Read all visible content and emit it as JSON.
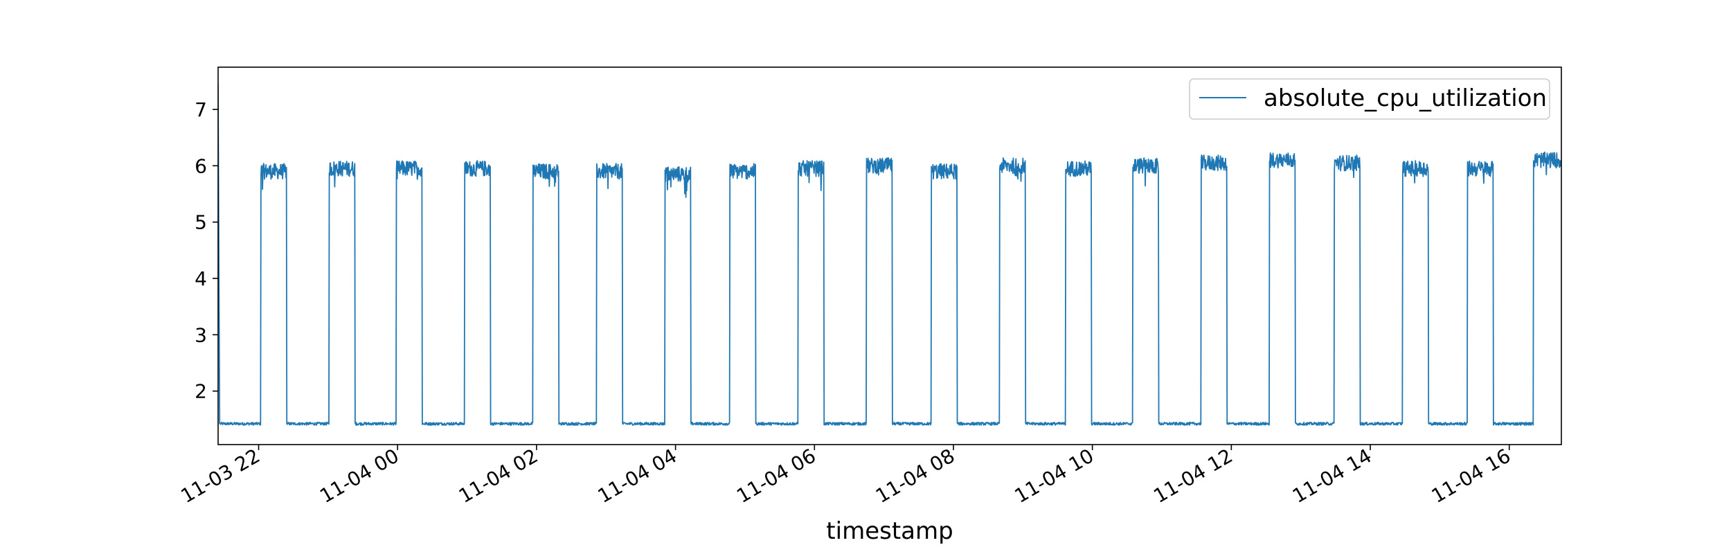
{
  "chart_data": {
    "type": "line",
    "title": "",
    "xlabel": "timestamp",
    "ylabel": "",
    "x_range": [
      "2023-11-03 21:25",
      "2023-11-04 16:45"
    ],
    "ylim": [
      1.05,
      7.75
    ],
    "y_ticks": [
      2,
      3,
      4,
      5,
      6,
      7
    ],
    "x_ticks": [
      {
        "time": "2023-11-03 22:00",
        "label": "11-03 22"
      },
      {
        "time": "2023-11-04 00:00",
        "label": "11-04 00"
      },
      {
        "time": "2023-11-04 02:00",
        "label": "11-04 02"
      },
      {
        "time": "2023-11-04 04:00",
        "label": "11-04 04"
      },
      {
        "time": "2023-11-04 06:00",
        "label": "11-04 06"
      },
      {
        "time": "2023-11-04 08:00",
        "label": "11-04 08"
      },
      {
        "time": "2023-11-04 10:00",
        "label": "11-04 10"
      },
      {
        "time": "2023-11-04 12:00",
        "label": "11-04 12"
      },
      {
        "time": "2023-11-04 14:00",
        "label": "11-04 14"
      },
      {
        "time": "2023-11-04 16:00",
        "label": "11-04 16"
      }
    ],
    "grid": false,
    "legend_position": "top-right",
    "series": [
      {
        "name": "absolute_cpu_utilization",
        "color": "#1f77b4",
        "baseline_value": 1.42,
        "initial_value": 7.45,
        "high_periods": [
          {
            "start": "2023-11-03 22:02",
            "end": "2023-11-03 22:24",
            "value": 5.9
          },
          {
            "start": "2023-11-03 23:01",
            "end": "2023-11-03 23:23",
            "value": 5.95
          },
          {
            "start": "2023-11-03 23:59",
            "end": "2023-11-04 00:21",
            "value": 5.95
          },
          {
            "start": "2023-11-04 00:58",
            "end": "2023-11-04 01:20",
            "value": 5.95
          },
          {
            "start": "2023-11-04 01:57",
            "end": "2023-11-04 02:19",
            "value": 5.9
          },
          {
            "start": "2023-11-04 02:52",
            "end": "2023-11-04 03:14",
            "value": 5.9
          },
          {
            "start": "2023-11-04 03:51",
            "end": "2023-11-04 04:13",
            "value": 5.85
          },
          {
            "start": "2023-11-04 04:47",
            "end": "2023-11-04 05:09",
            "value": 5.9
          },
          {
            "start": "2023-11-04 05:46",
            "end": "2023-11-04 06:08",
            "value": 5.95
          },
          {
            "start": "2023-11-04 06:45",
            "end": "2023-11-04 07:07",
            "value": 6.0
          },
          {
            "start": "2023-11-04 07:41",
            "end": "2023-11-04 08:03",
            "value": 5.9
          },
          {
            "start": "2023-11-04 08:40",
            "end": "2023-11-04 09:02",
            "value": 6.0
          },
          {
            "start": "2023-11-04 09:37",
            "end": "2023-11-04 09:59",
            "value": 5.95
          },
          {
            "start": "2023-11-04 10:35",
            "end": "2023-11-04 10:57",
            "value": 6.0
          },
          {
            "start": "2023-11-04 11:34",
            "end": "2023-11-04 11:56",
            "value": 6.05
          },
          {
            "start": "2023-11-04 12:33",
            "end": "2023-11-04 12:55",
            "value": 6.1
          },
          {
            "start": "2023-11-04 13:29",
            "end": "2023-11-04 13:51",
            "value": 6.05
          },
          {
            "start": "2023-11-04 14:28",
            "end": "2023-11-04 14:50",
            "value": 5.95
          },
          {
            "start": "2023-11-04 15:24",
            "end": "2023-11-04 15:46",
            "value": 5.95
          },
          {
            "start": "2023-11-04 16:21",
            "end": "2023-11-04 16:45",
            "value": 6.1
          }
        ]
      }
    ]
  }
}
